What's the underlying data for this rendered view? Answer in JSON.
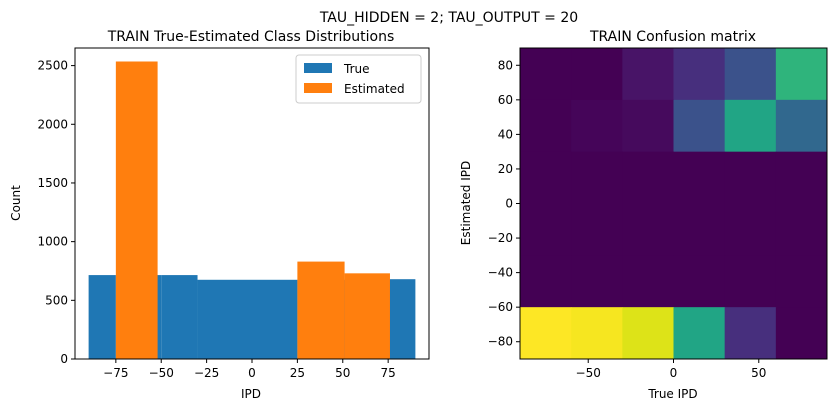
{
  "suptitle": "TAU_HIDDEN = 2; TAU_OUTPUT = 20",
  "chart_data": [
    {
      "type": "bar",
      "title": "TRAIN True-Estimated Class Distributions",
      "xlabel": "IPD",
      "ylabel": "Count",
      "xlim": [
        -97.5,
        97.5
      ],
      "ylim": [
        0,
        2650
      ],
      "xticks": [
        -75,
        -50,
        -25,
        0,
        25,
        50,
        75
      ],
      "xtick_labels": [
        "−75",
        "−50",
        "−25",
        "0",
        "25",
        "50",
        "75"
      ],
      "yticks": [
        0,
        500,
        1000,
        1500,
        2000,
        2500
      ],
      "ytick_labels": [
        "0",
        "500",
        "1000",
        "1500",
        "2000",
        "2500"
      ],
      "legend": {
        "position": "upper right"
      },
      "series": [
        {
          "name": "True",
          "color": "#1f77b4",
          "bars": [
            {
              "x0": -90,
              "x1": -75,
              "value": 715
            },
            {
              "x0": -75,
              "x1": -50,
              "value": 715
            },
            {
              "x0": -50,
              "x1": -30,
              "value": 715
            },
            {
              "x0": -30,
              "x1": 0,
              "value": 675
            },
            {
              "x0": 0,
              "x1": 25,
              "value": 675
            },
            {
              "x0": 25,
              "x1": 55,
              "value": 675
            },
            {
              "x0": 55,
              "x1": 75,
              "value": 675
            },
            {
              "x0": 75,
              "x1": 90,
              "value": 680
            }
          ]
        },
        {
          "name": "Estimated",
          "color": "#ff7f0e",
          "bars": [
            {
              "x0": -75,
              "x1": -52,
              "value": 2535
            },
            {
              "x0": 25,
              "x1": 51,
              "value": 830
            },
            {
              "x0": 51,
              "x1": 76,
              "value": 730
            }
          ]
        }
      ]
    },
    {
      "type": "heatmap",
      "title": "TRAIN Confusion matrix",
      "xlabel": "True IPD",
      "ylabel": "Estimated IPD",
      "xlim": [
        -90,
        90
      ],
      "ylim": [
        -90,
        90
      ],
      "xticks": [
        -50,
        0,
        50
      ],
      "xtick_labels": [
        "−50",
        "0",
        "50"
      ],
      "yticks": [
        80,
        60,
        40,
        20,
        0,
        -20,
        -40,
        -60,
        -80
      ],
      "ytick_labels": [
        "80",
        "60",
        "40",
        "20",
        "0",
        "−20",
        "−40",
        "−60",
        "−80"
      ],
      "x_edges": [
        -90,
        -60,
        -30,
        0,
        30,
        60,
        90
      ],
      "y_edges": [
        90,
        60,
        30,
        0,
        -30,
        -60,
        -90
      ],
      "cells": [
        [
          "#440154",
          "#440154",
          "#481467",
          "#472f7d",
          "#3b528b",
          "#2fb47c"
        ],
        [
          "#440154",
          "#450559",
          "#460a5d",
          "#3b528b",
          "#21a585",
          "#31688e"
        ],
        [
          "#440154",
          "#440154",
          "#440154",
          "#440154",
          "#440154",
          "#440154"
        ],
        [
          "#440154",
          "#440154",
          "#440154",
          "#440154",
          "#440154",
          "#440154"
        ],
        [
          "#440154",
          "#440154",
          "#440154",
          "#440154",
          "#440154",
          "#440154"
        ],
        [
          "#fde725",
          "#f6e620",
          "#dde318",
          "#21a585",
          "#472f7d",
          "#440154"
        ]
      ]
    }
  ]
}
